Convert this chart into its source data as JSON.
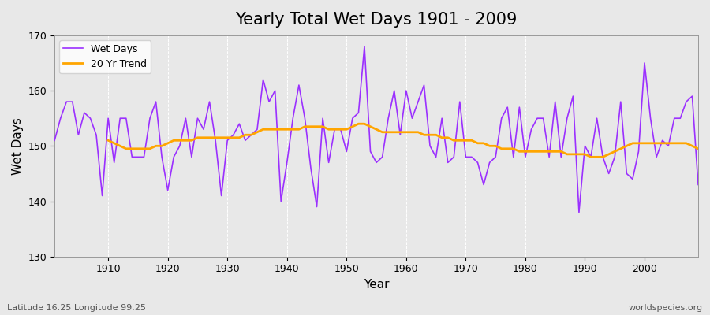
{
  "title": "Yearly Total Wet Days 1901 - 2009",
  "xlabel": "Year",
  "ylabel": "Wet Days",
  "subtitle": "Latitude 16.25 Longitude 99.25",
  "watermark": "worldspecies.org",
  "bg_color": "#e8e8e8",
  "line_color": "#9B30FF",
  "trend_color": "#FFA500",
  "years": [
    1901,
    1902,
    1903,
    1904,
    1905,
    1906,
    1907,
    1908,
    1909,
    1910,
    1911,
    1912,
    1913,
    1914,
    1915,
    1916,
    1917,
    1918,
    1919,
    1920,
    1921,
    1922,
    1923,
    1924,
    1925,
    1926,
    1927,
    1928,
    1929,
    1930,
    1931,
    1932,
    1933,
    1934,
    1935,
    1936,
    1937,
    1938,
    1939,
    1940,
    1941,
    1942,
    1943,
    1944,
    1945,
    1946,
    1947,
    1948,
    1949,
    1950,
    1951,
    1952,
    1953,
    1954,
    1955,
    1956,
    1957,
    1958,
    1959,
    1960,
    1961,
    1962,
    1963,
    1964,
    1965,
    1966,
    1967,
    1968,
    1969,
    1970,
    1971,
    1972,
    1973,
    1974,
    1975,
    1976,
    1977,
    1978,
    1979,
    1980,
    1981,
    1982,
    1983,
    1984,
    1985,
    1986,
    1987,
    1988,
    1989,
    1990,
    1991,
    1992,
    1993,
    1994,
    1995,
    1996,
    1997,
    1998,
    1999,
    2000,
    2001,
    2002,
    2003,
    2004,
    2005,
    2006,
    2007,
    2008,
    2009
  ],
  "wet_days": [
    151,
    155,
    158,
    158,
    152,
    156,
    155,
    152,
    141,
    155,
    147,
    155,
    155,
    148,
    148,
    148,
    155,
    158,
    148,
    142,
    148,
    150,
    155,
    148,
    155,
    153,
    158,
    151,
    141,
    151,
    152,
    154,
    151,
    152,
    153,
    162,
    158,
    160,
    140,
    147,
    155,
    161,
    155,
    146,
    139,
    155,
    147,
    153,
    153,
    149,
    155,
    156,
    168,
    149,
    147,
    148,
    155,
    160,
    152,
    160,
    155,
    158,
    161,
    150,
    148,
    155,
    147,
    148,
    158,
    148,
    148,
    147,
    143,
    147,
    148,
    155,
    157,
    148,
    157,
    148,
    153,
    155,
    155,
    148,
    158,
    148,
    155,
    159,
    138,
    150,
    148,
    155,
    148,
    145,
    148,
    158,
    145,
    144,
    149,
    165,
    155,
    148,
    151,
    150,
    155,
    155,
    158,
    159,
    143
  ],
  "trend_years": [
    1910,
    1911,
    1912,
    1913,
    1914,
    1915,
    1916,
    1917,
    1918,
    1919,
    1920,
    1921,
    1922,
    1923,
    1924,
    1925,
    1926,
    1927,
    1928,
    1929,
    1930,
    1931,
    1932,
    1933,
    1934,
    1935,
    1936,
    1937,
    1938,
    1939,
    1940,
    1941,
    1942,
    1943,
    1944,
    1945,
    1946,
    1947,
    1948,
    1949,
    1950,
    1951,
    1952,
    1953,
    1954,
    1955,
    1956,
    1957,
    1958,
    1959,
    1960,
    1961,
    1962,
    1963,
    1964,
    1965,
    1966,
    1967,
    1968,
    1969,
    1970,
    1971,
    1972,
    1973,
    1974,
    1975,
    1976,
    1977,
    1978,
    1979,
    1980,
    1981,
    1982,
    1983,
    1984,
    1985,
    1986,
    1987,
    1988,
    1989,
    1990,
    1991,
    1992,
    1993,
    1994,
    1995,
    1996,
    1997,
    1998,
    1999,
    2000,
    2001,
    2002,
    2003,
    2004,
    2005,
    2006,
    2007,
    2008,
    2009
  ],
  "trend_vals": [
    151.0,
    150.5,
    150.0,
    149.5,
    149.5,
    149.5,
    149.5,
    149.5,
    150.0,
    150.0,
    150.5,
    151.0,
    151.0,
    151.0,
    151.0,
    151.5,
    151.5,
    151.5,
    151.5,
    151.5,
    151.5,
    151.5,
    151.5,
    152.0,
    152.0,
    152.5,
    153.0,
    153.0,
    153.0,
    153.0,
    153.0,
    153.0,
    153.0,
    153.5,
    153.5,
    153.5,
    153.5,
    153.0,
    153.0,
    153.0,
    153.0,
    153.5,
    154.0,
    154.0,
    153.5,
    153.0,
    152.5,
    152.5,
    152.5,
    152.5,
    152.5,
    152.5,
    152.5,
    152.0,
    152.0,
    152.0,
    151.5,
    151.5,
    151.0,
    151.0,
    151.0,
    151.0,
    150.5,
    150.5,
    150.0,
    150.0,
    149.5,
    149.5,
    149.5,
    149.0,
    149.0,
    149.0,
    149.0,
    149.0,
    149.0,
    149.0,
    149.0,
    148.5,
    148.5,
    148.5,
    148.5,
    148.0,
    148.0,
    148.0,
    148.5,
    149.0,
    149.5,
    150.0,
    150.5,
    150.5,
    150.5,
    150.5,
    150.5,
    150.5,
    150.5,
    150.5,
    150.5,
    150.5,
    150.0,
    149.5
  ],
  "ylim": [
    130,
    170
  ],
  "yticks": [
    130,
    140,
    150,
    160,
    170
  ],
  "xlim": [
    1901,
    2009
  ],
  "xticks": [
    1910,
    1920,
    1930,
    1940,
    1950,
    1960,
    1970,
    1980,
    1990,
    2000
  ]
}
